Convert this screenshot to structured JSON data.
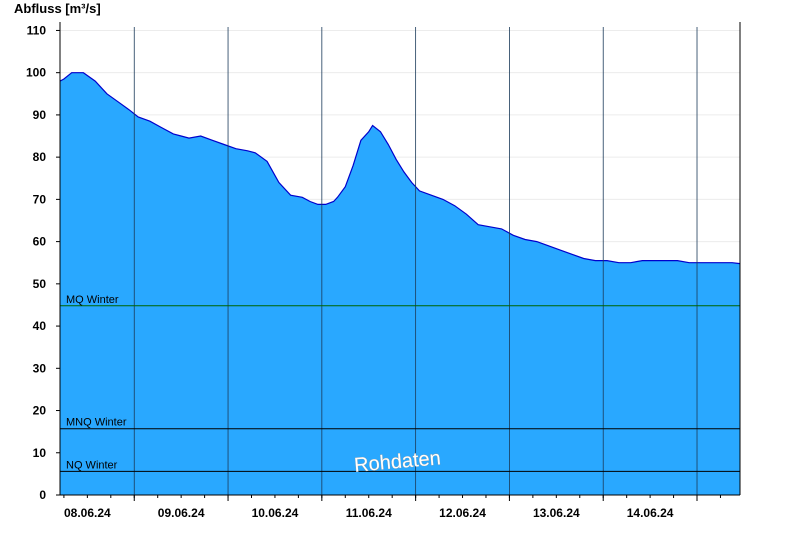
{
  "chart_data": {
    "type": "area",
    "ylabel": "Abfluss [m³/s]",
    "ylim": [
      0,
      112
    ],
    "yticks": [
      0,
      10,
      20,
      30,
      40,
      50,
      60,
      70,
      80,
      90,
      100,
      110
    ],
    "xlim": [
      "07.06.24 17:00",
      "14.06.24 23:00"
    ],
    "xtick_labels": [
      "08.06.24",
      "09.06.24",
      "10.06.24",
      "11.06.24",
      "12.06.24",
      "13.06.24",
      "14.06.24"
    ],
    "day_boundaries": [
      "08.06.24 12:00",
      "09.06.24 12:00",
      "10.06.24 12:00",
      "11.06.24 12:00",
      "12.06.24 12:00",
      "13.06.24 12:00",
      "14.06.24 12:00"
    ],
    "fill_color": "#29a8ff",
    "line_color": "#0000cc",
    "series": [
      {
        "x": [
          "07.06.24 17:00",
          "07.06.24 18:00",
          "07.06.24 20:00",
          "07.06.24 23:00",
          "08.06.24 02:00",
          "08.06.24 05:00",
          "08.06.24 08:00",
          "08.06.24 11:00",
          "08.06.24 13:00",
          "08.06.24 16:00",
          "08.06.24 19:00",
          "08.06.24 22:00",
          "09.06.24 00:00",
          "09.06.24 02:00",
          "09.06.24 05:00",
          "09.06.24 08:00",
          "09.06.24 11:00",
          "09.06.24 14:00",
          "09.06.24 17:00",
          "09.06.24 19:00",
          "09.06.24 22:00",
          "10.06.24 01:00",
          "10.06.24 04:00",
          "10.06.24 07:00",
          "10.06.24 09:00",
          "10.06.24 11:00",
          "10.06.24 13:00",
          "10.06.24 15:00",
          "10.06.24 16:00",
          "10.06.24 18:00",
          "10.06.24 20:00",
          "10.06.24 22:00",
          "11.06.24 00:00",
          "11.06.24 01:00",
          "11.06.24 03:00",
          "11.06.24 05:00",
          "11.06.24 07:00",
          "11.06.24 09:00",
          "11.06.24 11:00",
          "11.06.24 13:00",
          "11.06.24 16:00",
          "11.06.24 19:00",
          "11.06.24 22:00",
          "12.06.24 01:00",
          "12.06.24 04:00",
          "12.06.24 07:00",
          "12.06.24 10:00",
          "12.06.24 13:00",
          "12.06.24 16:00",
          "12.06.24 19:00",
          "12.06.24 22:00",
          "13.06.24 01:00",
          "13.06.24 04:00",
          "13.06.24 07:00",
          "13.06.24 10:00",
          "13.06.24 13:00",
          "13.06.24 16:00",
          "13.06.24 19:00",
          "13.06.24 22:00",
          "14.06.24 01:00",
          "14.06.24 04:00",
          "14.06.24 07:00",
          "14.06.24 10:00",
          "14.06.24 13:00",
          "14.06.24 16:00",
          "14.06.24 19:00",
          "14.06.24 21:00",
          "14.06.24 23:00"
        ],
        "values": [
          98,
          98.5,
          100,
          100,
          98,
          95,
          93,
          91,
          89.5,
          88.5,
          87,
          85.5,
          85,
          84.5,
          85,
          84,
          83,
          82,
          81.5,
          81,
          79,
          74,
          71,
          70.5,
          69.5,
          68.8,
          68.8,
          69.5,
          70.5,
          73,
          78,
          84,
          86,
          87.5,
          86,
          83,
          79.5,
          76.5,
          74,
          72,
          71,
          70,
          68.5,
          66.5,
          64,
          63.5,
          63,
          61.5,
          60.5,
          60,
          59,
          58,
          57,
          56,
          55.5,
          55.5,
          55,
          55,
          55.5,
          55.5,
          55.5,
          55.5,
          55,
          55,
          55,
          55,
          55,
          54.8
        ]
      }
    ],
    "reference_lines": [
      {
        "label": "MQ Winter",
        "value": 44.8,
        "color": "#006400"
      },
      {
        "label": "MNQ Winter",
        "value": 15.7,
        "color": "#000000"
      },
      {
        "label": "NQ Winter",
        "value": 5.6,
        "color": "#000000"
      }
    ],
    "watermark": "Rohdaten"
  }
}
